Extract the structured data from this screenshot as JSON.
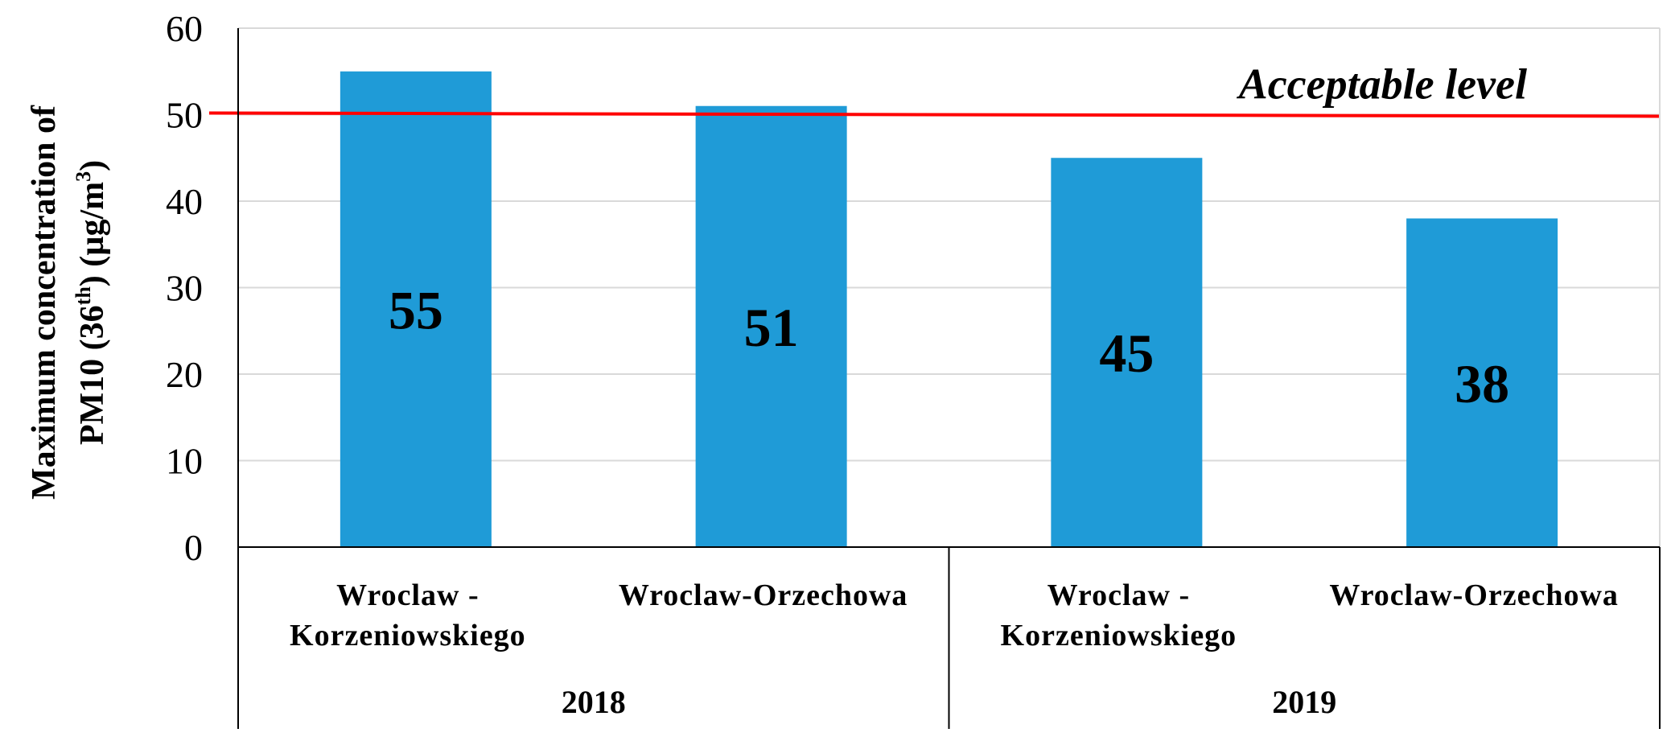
{
  "chart_data": {
    "type": "bar",
    "categories": [
      {
        "lines": [
          "Wroclaw -",
          "Korzeniowskiego"
        ],
        "group": "2018"
      },
      {
        "lines": [
          "Wroclaw-Orzechowa"
        ],
        "group": "2018"
      },
      {
        "lines": [
          "Wroclaw -",
          "Korzeniowskiego"
        ],
        "group": "2019"
      },
      {
        "lines": [
          "Wroclaw-Orzechowa"
        ],
        "group": "2019"
      }
    ],
    "groups": [
      "2018",
      "2019"
    ],
    "values": [
      55,
      51,
      45,
      38
    ],
    "data_labels": [
      "55",
      "51",
      "45",
      "38"
    ],
    "ylabel": {
      "line1": "Maximum concentration of",
      "line2_prefix": "PM10  (36",
      "line2_sup": "th",
      "line2_mid": ") (µg/m",
      "line2_sup2": "3",
      "line2_suffix": ")"
    },
    "ylim": [
      0,
      60
    ],
    "yticks": [
      0,
      10,
      20,
      30,
      40,
      50,
      60
    ],
    "grid": true,
    "reference_line": {
      "value": 50,
      "label": "Acceptable level",
      "color": "#ff0000"
    },
    "bar_color": "#1f9bd7"
  }
}
